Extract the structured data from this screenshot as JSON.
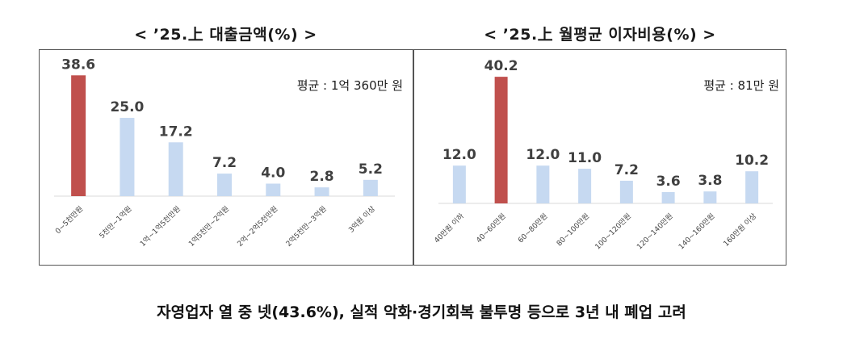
{
  "colors": {
    "highlight": "#c0504d",
    "normal": "#c6d9f1",
    "axis": "#d9d9d9",
    "value_text": "#404040"
  },
  "footer": "자영업자 열 중 넷(43.6%), 실적 악화·경기회복 불투명 등으로 3년 내 폐업 고려",
  "chart_data": [
    {
      "type": "bar",
      "title": "< ’25.上 대출금액(%) >",
      "annotation": "평균 : 1억 360만 원",
      "categories": [
        "0~5천만원",
        "5천만~1억원",
        "1억~1억5천만원",
        "1억5천만~2억원",
        "2억~2억5천만원",
        "2억5천만~3억원",
        "3억원 이상"
      ],
      "values": [
        38.6,
        25.0,
        17.2,
        7.2,
        4.0,
        2.8,
        5.2
      ],
      "value_labels": [
        "38.6",
        "25.0",
        "17.2",
        "7.2",
        "4.0",
        "2.8",
        "5.2"
      ],
      "highlight_index": 0,
      "ylim": [
        0,
        41
      ],
      "grid": false
    },
    {
      "type": "bar",
      "title": "< ’25.上 월평균 이자비용(%) >",
      "annotation": "평균 : 81만 원",
      "categories": [
        "40만원 이하",
        "40~60만원",
        "60~80만원",
        "80~100만원",
        "100~120만원",
        "120~140만원",
        "140~160만원",
        "160만원 이상"
      ],
      "values": [
        12.0,
        40.2,
        12.0,
        11.0,
        7.2,
        3.6,
        3.8,
        10.2
      ],
      "value_labels": [
        "12.0",
        "40.2",
        "12.0",
        "11.0",
        "7.2",
        "3.6",
        "3.8",
        "10.2"
      ],
      "highlight_index": 1,
      "ylim": [
        0,
        41
      ],
      "grid": false
    }
  ]
}
